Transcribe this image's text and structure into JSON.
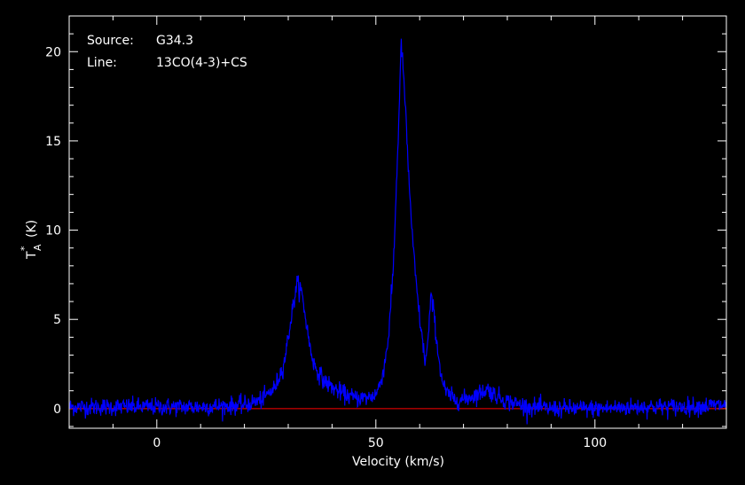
{
  "chart_data": {
    "type": "line",
    "source_label": "Source:",
    "source_value": "G34.3",
    "line_label": "Line:",
    "line_value": "13CO(4-3)+CS",
    "xlabel": "Velocity (km/s)",
    "ylabel_main": "T",
    "ylabel_sup": "*",
    "ylabel_sub": "A",
    "ylabel_unit": "(K)",
    "xlim": [
      -20,
      130
    ],
    "ylim": [
      -1.1,
      22.0
    ],
    "xticks": [
      0,
      50,
      100
    ],
    "xtick_labels": [
      "0",
      "50",
      "100"
    ],
    "yticks": [
      0,
      5,
      10,
      15,
      20
    ],
    "ytick_labels": [
      "0",
      "5",
      "10",
      "15",
      "20"
    ],
    "x_minor_step": 10,
    "y_minor_step": 1,
    "baseline": 0,
    "grid": false,
    "noise_rms": 0.25,
    "colors": {
      "background": "#000000",
      "axes": "#ffffff",
      "spectrum": "#0000ff",
      "baseline": "#ff0000",
      "text": "#ffffff"
    },
    "series": [
      {
        "x": [
          -20,
          -10,
          0,
          10,
          20,
          24,
          27,
          29,
          30,
          31,
          32,
          33,
          34,
          35,
          36,
          38,
          40,
          42,
          45,
          48,
          50,
          51,
          52,
          53,
          54,
          55,
          55.8,
          56.5,
          57.5,
          58.5,
          59.5,
          60.5,
          61.3,
          62,
          62.5,
          63.2,
          64,
          65,
          66,
          68,
          70,
          72,
          74,
          75.5,
          77,
          80,
          85,
          90,
          100,
          110,
          120,
          130
        ],
        "y": [
          0.1,
          0.1,
          0.1,
          0.1,
          0.2,
          0.5,
          1.2,
          2.5,
          4.0,
          5.6,
          7.0,
          6.6,
          5.0,
          3.4,
          2.4,
          1.6,
          1.2,
          0.9,
          0.6,
          0.6,
          0.8,
          1.4,
          2.5,
          4.3,
          8.0,
          14.5,
          20.5,
          18.0,
          13.0,
          9.0,
          6.2,
          4.0,
          2.6,
          4.0,
          6.2,
          5.5,
          3.5,
          1.7,
          0.9,
          0.5,
          0.5,
          0.7,
          0.9,
          1.1,
          0.8,
          0.4,
          0.1,
          0.0,
          0.0,
          0.1,
          0.1,
          0.2
        ]
      }
    ]
  }
}
